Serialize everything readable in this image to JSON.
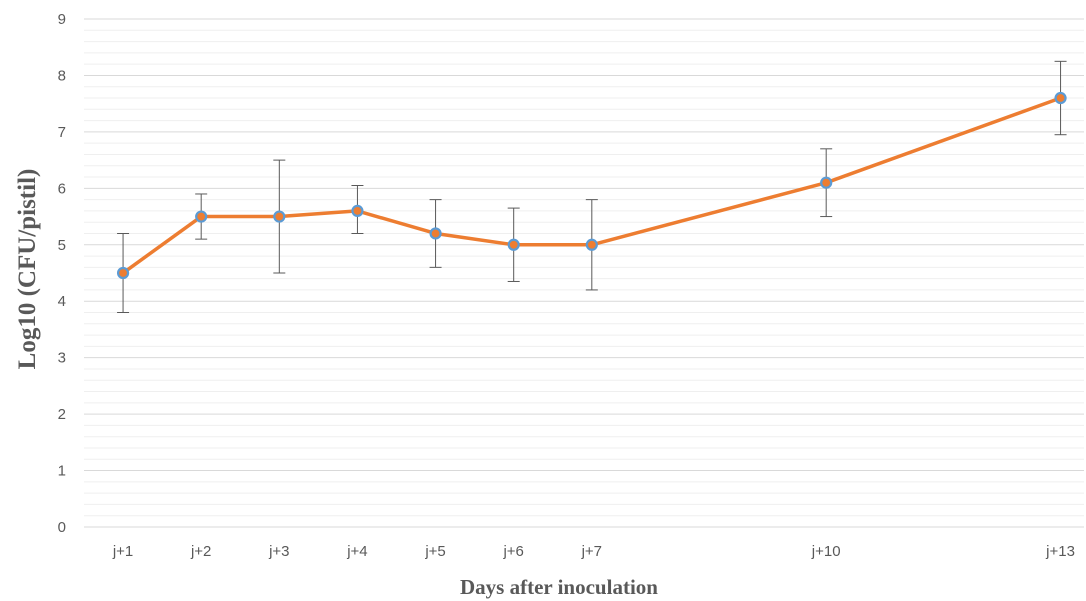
{
  "chart_data": {
    "type": "line",
    "xlabel": "Days after inoculation",
    "ylabel": "Log10 (CFU/pistil)",
    "ylim": [
      0,
      9
    ],
    "y_ticks": [
      "0",
      "1",
      "2",
      "3",
      "4",
      "5",
      "6",
      "7",
      "8",
      "9"
    ],
    "x": [
      1,
      2,
      3,
      4,
      5,
      6,
      7,
      10,
      13
    ],
    "x_labels": [
      "j+1",
      "j+2",
      "j+3",
      "j+4",
      "j+5",
      "j+6",
      "j+7",
      "j+10",
      "j+13"
    ],
    "xlim": [
      0.5,
      13.3
    ],
    "grid": true,
    "series": [
      {
        "values": [
          4.5,
          5.5,
          5.5,
          5.6,
          5.2,
          5.0,
          5.0,
          6.1,
          7.6
        ],
        "err_low": [
          3.8,
          5.1,
          4.5,
          5.2,
          4.6,
          4.35,
          4.2,
          5.5,
          6.95
        ],
        "err_high": [
          5.2,
          5.9,
          6.5,
          6.05,
          5.8,
          5.65,
          5.8,
          6.7,
          8.25
        ],
        "line_color": "#ED7D31",
        "marker_color": "#5B9BD5"
      }
    ]
  }
}
